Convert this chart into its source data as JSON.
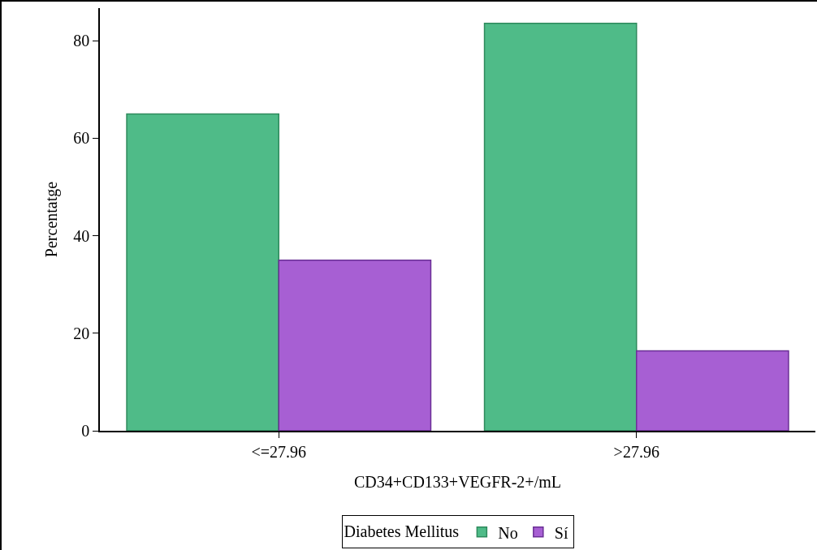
{
  "chart_data": {
    "type": "bar",
    "xlabel": "CD34+CD133+VEGFR-2+/mL",
    "ylabel": "Percentatge",
    "legend_title": "Diabetes Mellitus",
    "categories": [
      "<=27.96",
      ">27.96"
    ],
    "series": [
      {
        "name": "No",
        "color": "#4fbb88",
        "values": [
          65,
          83.6
        ]
      },
      {
        "name": "Sí",
        "color": "#a75fd3",
        "values": [
          35,
          16.4
        ]
      }
    ],
    "ylim": [
      0,
      86.7
    ],
    "yticks": [
      0,
      20,
      40,
      60,
      80
    ],
    "grid": false,
    "legend": "bottom"
  }
}
